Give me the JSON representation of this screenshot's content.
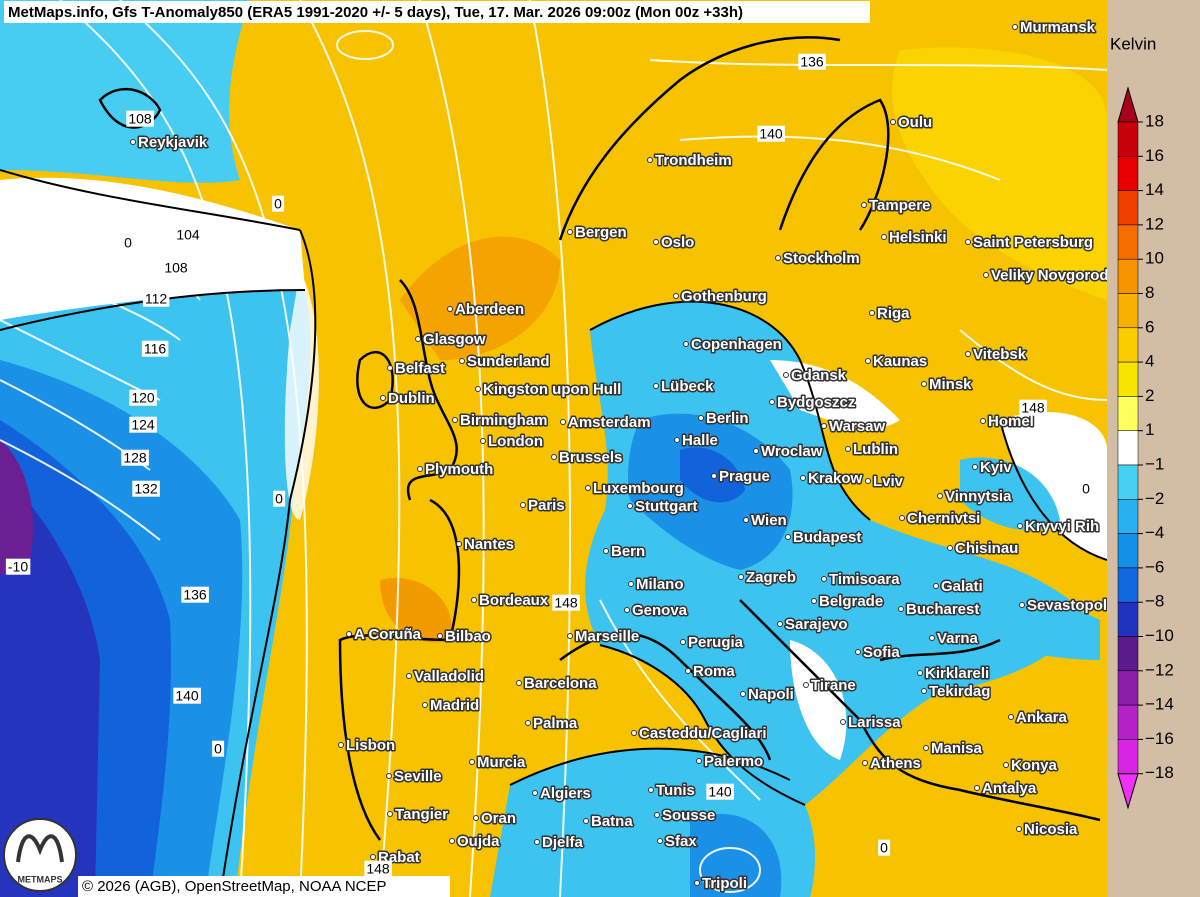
{
  "header": {
    "title": "MetMaps.info, Gfs T-Anomaly850 (ERA5 1991-2020 +/- 5 days), Tue, 17. Mar. 2026 09:00z (Mon 00z +33h)"
  },
  "legend": {
    "unit": "Kelvin",
    "ticks": [
      "18",
      "16",
      "14",
      "12",
      "10",
      "8",
      "6",
      "4",
      "2",
      "1",
      "−1",
      "−2",
      "−4",
      "−6",
      "−8",
      "−10",
      "−12",
      "−14",
      "−16",
      "−18"
    ]
  },
  "cities": [
    "Murmansk",
    "Reykjavik",
    "Oulu",
    "Trondheim",
    "Tampere",
    "Bergen",
    "Oslo",
    "Helsinki",
    "Saint Petersburg",
    "Stockholm",
    "Veliky Novgorod",
    "Gothenburg",
    "Aberdeen",
    "Riga",
    "Glasgow",
    "Copenhagen",
    "Sunderland",
    "Kaunas",
    "Vitebsk",
    "Belfast",
    "Gdansk",
    "Kingston upon Hull",
    "Lübeck",
    "Minsk",
    "Dublin",
    "Bydgoszcz",
    "Birmingham",
    "Amsterdam",
    "Berlin",
    "Warsaw",
    "Homel",
    "London",
    "Halle",
    "Wroclaw",
    "Lublin",
    "Brussels",
    "Plymouth",
    "Kyiv",
    "Prague",
    "Krakow",
    "Lviv",
    "Luxembourg",
    "Paris",
    "Vinnytsia",
    "Stuttgart",
    "Wien",
    "Chernivtsi",
    "Kryvyi Rih",
    "Budapest",
    "Nantes",
    "Bern",
    "Chisinau",
    "Milano",
    "Zagreb",
    "Timisoara",
    "Galati",
    "Bordeaux",
    "Genova",
    "Belgrade",
    "Bucharest",
    "Sevastopol",
    "Sarajevo",
    "A Coruña",
    "Bilbao",
    "Marseille",
    "Perugia",
    "Varna",
    "Sofia",
    "Roma",
    "Kirklareli",
    "Valladolid",
    "Barcelona",
    "Tirane",
    "Tekirdag",
    "Napoli",
    "Madrid",
    "Ankara",
    "Palma",
    "Larissa",
    "Casteddu/Cagliari",
    "Lisbon",
    "Manisa",
    "Palermo",
    "Murcia",
    "Athens",
    "Konya",
    "Seville",
    "Algiers",
    "Tunis",
    "Antalya",
    "Tangier",
    "Oran",
    "Sousse",
    "Batna",
    "Oujda",
    "Djelfa",
    "Sfax",
    "Nicosia",
    "Rabat",
    "Tripoli"
  ],
  "contour_labels": [
    "136",
    "140",
    "108",
    "104",
    "108",
    "112",
    "116",
    "120",
    "124",
    "128",
    "132",
    "136",
    "140",
    "0",
    "0",
    "0",
    "0",
    "0",
    "0",
    "148",
    "148",
    "140",
    "148",
    "-10"
  ],
  "footer": {
    "credit": "© 2026 (AGB), OpenStreetMap, NOAA NCEP",
    "logo": "METMAPS"
  }
}
